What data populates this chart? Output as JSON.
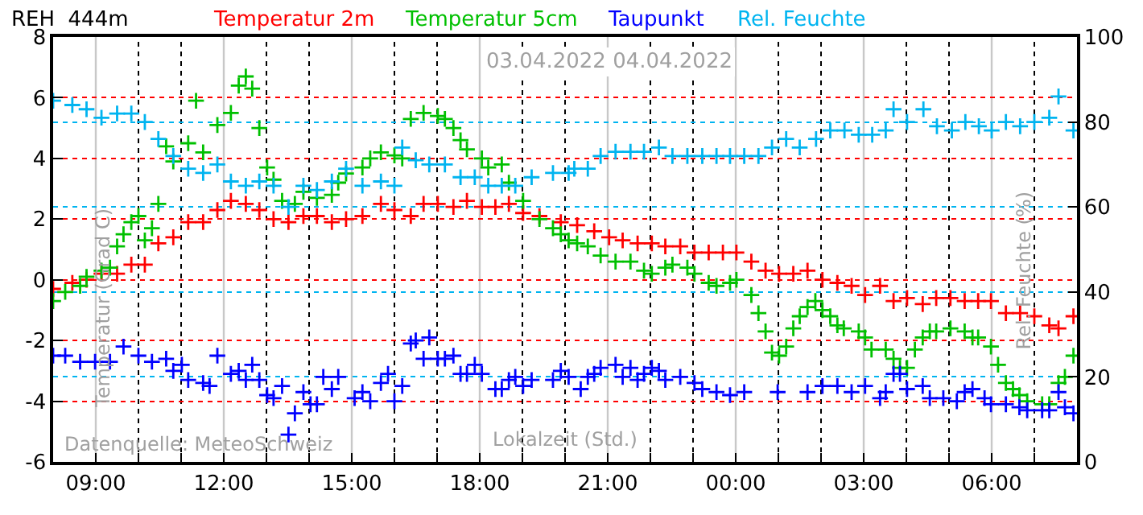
{
  "chart_data": {
    "type": "scatter",
    "title": "REH  444m",
    "xlabel": "Lokalzeit (Std.)",
    "ylabel": "Temperatur (Grad C)",
    "y2label": "Rel. Feuchte (%)",
    "annotations": [
      "03.04.2022 04.04.2022",
      "Datenquelle: MeteoSchweiz"
    ],
    "marker": "cross",
    "grid": true,
    "xlim": [
      "2022-04-03T08:00",
      "2022-04-04T08:00"
    ],
    "xticks": [
      {
        "value": "2022-04-03T09:00",
        "label": "09:00"
      },
      {
        "value": "2022-04-03T10:00",
        "label": null
      },
      {
        "value": "2022-04-03T11:00",
        "label": null
      },
      {
        "value": "2022-04-03T12:00",
        "label": "12:00"
      },
      {
        "value": "2022-04-03T13:00",
        "label": null
      },
      {
        "value": "2022-04-03T14:00",
        "label": null
      },
      {
        "value": "2022-04-03T15:00",
        "label": "15:00"
      },
      {
        "value": "2022-04-03T16:00",
        "label": null
      },
      {
        "value": "2022-04-03T17:00",
        "label": null
      },
      {
        "value": "2022-04-03T18:00",
        "label": "18:00"
      },
      {
        "value": "2022-04-03T19:00",
        "label": null
      },
      {
        "value": "2022-04-03T20:00",
        "label": null
      },
      {
        "value": "2022-04-03T21:00",
        "label": "21:00"
      },
      {
        "value": "2022-04-03T22:00",
        "label": null
      },
      {
        "value": "2022-04-03T23:00",
        "label": null
      },
      {
        "value": "2022-04-04T00:00",
        "label": "00:00"
      },
      {
        "value": "2022-04-04T01:00",
        "label": null
      },
      {
        "value": "2022-04-04T02:00",
        "label": null
      },
      {
        "value": "2022-04-04T03:00",
        "label": "03:00"
      },
      {
        "value": "2022-04-04T04:00",
        "label": null
      },
      {
        "value": "2022-04-04T05:00",
        "label": null
      },
      {
        "value": "2022-04-04T06:00",
        "label": "06:00"
      },
      {
        "value": "2022-04-04T07:00",
        "label": null
      }
    ],
    "ylim": [
      -6,
      8
    ],
    "yticks": [
      -6,
      -4,
      -2,
      0,
      2,
      4,
      6,
      8
    ],
    "y2lim": [
      0,
      100
    ],
    "y2ticks": [
      0,
      20,
      40,
      60,
      80,
      100
    ],
    "series": [
      {
        "name": "Temperatur 2m",
        "color": "#ff0000",
        "x": [
          "2022-04-03T08:00",
          "2022-04-03T08:27",
          "2022-04-03T08:47",
          "2022-04-03T09:08",
          "2022-04-03T09:30",
          "2022-04-03T09:50",
          "2022-04-03T10:09",
          "2022-04-03T10:28",
          "2022-04-03T10:49",
          "2022-04-03T11:10",
          "2022-04-03T11:31",
          "2022-04-03T11:51",
          "2022-04-03T12:10",
          "2022-04-03T12:31",
          "2022-04-03T12:50",
          "2022-04-03T13:10",
          "2022-04-03T13:31",
          "2022-04-03T13:52",
          "2022-04-03T14:11",
          "2022-04-03T14:32",
          "2022-04-03T14:52",
          "2022-04-03T15:15",
          "2022-04-03T15:41",
          "2022-04-03T16:00",
          "2022-04-03T16:23",
          "2022-04-03T16:41",
          "2022-04-03T17:01",
          "2022-04-03T17:23",
          "2022-04-03T17:42",
          "2022-04-03T18:03",
          "2022-04-03T18:22",
          "2022-04-03T18:41",
          "2022-04-03T19:01",
          "2022-04-03T19:24",
          "2022-04-03T19:54",
          "2022-04-03T20:17",
          "2022-04-03T20:41",
          "2022-04-03T21:02",
          "2022-04-03T21:21",
          "2022-04-03T21:42",
          "2022-04-03T22:02",
          "2022-04-03T22:21",
          "2022-04-03T22:42",
          "2022-04-03T23:02",
          "2022-04-03T23:22",
          "2022-04-03T23:42",
          "2022-04-04T00:01",
          "2022-04-04T00:22",
          "2022-04-04T00:42",
          "2022-04-04T01:01",
          "2022-04-04T01:21",
          "2022-04-04T01:41",
          "2022-04-04T02:02",
          "2022-04-04T02:23",
          "2022-04-04T02:43",
          "2022-04-04T03:02",
          "2022-04-04T03:23",
          "2022-04-04T03:42",
          "2022-04-04T04:01",
          "2022-04-04T04:23",
          "2022-04-04T04:42",
          "2022-04-04T05:02",
          "2022-04-04T05:22",
          "2022-04-04T05:41",
          "2022-04-04T05:59",
          "2022-04-04T06:20",
          "2022-04-04T06:40",
          "2022-04-04T07:00",
          "2022-04-04T07:21",
          "2022-04-04T07:34",
          "2022-04-04T07:55"
        ],
        "values": [
          -0.3,
          -0.1,
          0.0,
          0.2,
          0.2,
          0.5,
          0.5,
          1.2,
          1.4,
          1.9,
          1.9,
          2.3,
          2.6,
          2.5,
          2.3,
          2.0,
          1.9,
          2.1,
          2.1,
          1.9,
          2.0,
          2.1,
          2.5,
          2.3,
          2.1,
          2.5,
          2.5,
          2.4,
          2.6,
          2.4,
          2.4,
          2.5,
          2.2,
          2.1,
          1.9,
          1.8,
          1.6,
          1.4,
          1.3,
          1.2,
          1.2,
          1.1,
          1.1,
          0.9,
          0.9,
          0.9,
          0.9,
          0.6,
          0.3,
          0.2,
          0.2,
          0.3,
          0.0,
          -0.1,
          -0.2,
          -0.5,
          -0.2,
          -0.7,
          -0.6,
          -0.8,
          -0.6,
          -0.6,
          -0.7,
          -0.7,
          -0.7,
          -1.1,
          -1.1,
          -1.2,
          -1.5,
          -1.6,
          -1.2
        ]
      },
      {
        "name": "Temperatur 5cm",
        "color": "#00c000",
        "x": [
          "2022-04-03T08:00",
          "2022-04-03T08:17",
          "2022-04-03T08:38",
          "2022-04-03T08:47",
          "2022-04-03T09:08",
          "2022-04-03T09:20",
          "2022-04-03T09:30",
          "2022-04-03T09:39",
          "2022-04-03T09:50",
          "2022-04-03T10:00",
          "2022-04-03T10:09",
          "2022-04-03T10:19",
          "2022-04-03T10:28",
          "2022-04-03T10:39",
          "2022-04-03T10:49",
          "2022-04-03T11:10",
          "2022-04-03T11:21",
          "2022-04-03T11:31",
          "2022-04-03T11:51",
          "2022-04-03T12:10",
          "2022-04-03T12:21",
          "2022-04-03T12:31",
          "2022-04-03T12:40",
          "2022-04-03T12:50",
          "2022-04-03T13:01",
          "2022-04-03T13:10",
          "2022-04-03T13:22",
          "2022-04-03T13:40",
          "2022-04-03T13:52",
          "2022-04-03T14:11",
          "2022-04-03T14:32",
          "2022-04-03T14:41",
          "2022-04-03T14:52",
          "2022-04-03T15:15",
          "2022-04-03T15:26",
          "2022-04-03T15:41",
          "2022-04-03T16:00",
          "2022-04-03T16:11",
          "2022-04-03T16:23",
          "2022-04-03T16:41",
          "2022-04-03T17:01",
          "2022-04-03T17:11",
          "2022-04-03T17:23",
          "2022-04-03T17:33",
          "2022-04-03T17:42",
          "2022-04-03T18:03",
          "2022-04-03T18:12",
          "2022-04-03T18:31",
          "2022-04-03T18:41",
          "2022-04-03T19:01",
          "2022-04-03T19:24",
          "2022-04-03T19:43",
          "2022-04-03T19:54",
          "2022-04-03T20:05",
          "2022-04-03T20:17",
          "2022-04-03T20:32",
          "2022-04-03T20:50",
          "2022-04-03T21:11",
          "2022-04-03T21:32",
          "2022-04-03T21:51",
          "2022-04-03T22:02",
          "2022-04-03T22:21",
          "2022-04-03T22:31",
          "2022-04-03T22:52",
          "2022-04-03T23:02",
          "2022-04-03T23:22",
          "2022-04-03T23:33",
          "2022-04-03T23:52",
          "2022-04-04T00:01",
          "2022-04-04T00:22",
          "2022-04-04T00:32",
          "2022-04-04T00:42",
          "2022-04-04T00:51",
          "2022-04-04T01:01",
          "2022-04-04T01:11",
          "2022-04-04T01:21",
          "2022-04-04T01:30",
          "2022-04-04T01:41",
          "2022-04-04T01:52",
          "2022-04-04T02:02",
          "2022-04-04T02:13",
          "2022-04-04T02:23",
          "2022-04-04T02:32",
          "2022-04-04T02:53",
          "2022-04-04T03:02",
          "2022-04-04T03:11",
          "2022-04-04T03:31",
          "2022-04-04T03:42",
          "2022-04-04T03:51",
          "2022-04-04T04:01",
          "2022-04-04T04:12",
          "2022-04-04T04:23",
          "2022-04-04T04:33",
          "2022-04-04T04:42",
          "2022-04-04T05:02",
          "2022-04-04T05:22",
          "2022-04-04T05:33",
          "2022-04-04T05:41",
          "2022-04-04T05:59",
          "2022-04-04T06:09",
          "2022-04-04T06:20",
          "2022-04-04T06:30",
          "2022-04-04T06:39",
          "2022-04-04T06:50",
          "2022-04-04T07:11",
          "2022-04-04T07:21",
          "2022-04-04T07:34",
          "2022-04-04T07:43",
          "2022-04-04T07:55"
        ],
        "values": [
          -0.7,
          -0.4,
          -0.2,
          0.1,
          0.3,
          0.4,
          1.1,
          1.5,
          1.9,
          2.1,
          1.3,
          1.7,
          2.5,
          4.4,
          3.9,
          4.5,
          5.9,
          4.2,
          5.1,
          5.5,
          6.4,
          6.7,
          6.3,
          5.0,
          3.7,
          3.3,
          2.6,
          2.5,
          2.9,
          2.7,
          2.8,
          3.2,
          3.5,
          3.7,
          4.0,
          4.2,
          4.1,
          4.0,
          5.3,
          5.5,
          5.4,
          5.3,
          5.0,
          4.6,
          4.3,
          4.0,
          3.7,
          3.8,
          3.2,
          2.6,
          2.0,
          1.7,
          1.5,
          1.3,
          1.2,
          1.1,
          0.8,
          0.6,
          0.6,
          0.3,
          0.2,
          0.4,
          0.5,
          0.4,
          0.2,
          -0.1,
          -0.2,
          -0.1,
          0.0,
          -0.5,
          -1.1,
          -1.7,
          -2.4,
          -2.5,
          -2.2,
          -1.6,
          -1.2,
          -0.9,
          -0.7,
          -1.0,
          -1.2,
          -1.5,
          -1.6,
          -1.7,
          -1.9,
          -2.3,
          -2.3,
          -2.6,
          -2.9,
          -2.9,
          -2.3,
          -1.9,
          -1.7,
          -1.7,
          -1.6,
          -1.7,
          -1.9,
          -1.9,
          -2.2,
          -2.8,
          -3.4,
          -3.6,
          -3.8,
          -4.0,
          -4.1,
          -4.1,
          -3.4,
          -3.2,
          -2.5
        ]
      },
      {
        "name": "Taupunkt",
        "color": "#0000ff",
        "x": [
          "2022-04-03T08:00",
          "2022-04-03T08:17",
          "2022-04-03T08:38",
          "2022-04-03T08:59",
          "2022-04-03T09:20",
          "2022-04-03T09:39",
          "2022-04-03T10:00",
          "2022-04-03T10:19",
          "2022-04-03T10:39",
          "2022-04-03T10:49",
          "2022-04-03T11:01",
          "2022-04-03T11:10",
          "2022-04-03T11:31",
          "2022-04-03T11:40",
          "2022-04-03T11:51",
          "2022-04-03T12:10",
          "2022-04-03T12:21",
          "2022-04-03T12:31",
          "2022-04-03T12:40",
          "2022-04-03T12:50",
          "2022-04-03T13:01",
          "2022-04-03T13:10",
          "2022-04-03T13:22",
          "2022-04-03T13:31",
          "2022-04-03T13:40",
          "2022-04-03T13:52",
          "2022-04-03T14:02",
          "2022-04-03T14:11",
          "2022-04-03T14:20",
          "2022-04-03T14:32",
          "2022-04-03T14:41",
          "2022-04-03T15:04",
          "2022-04-03T15:15",
          "2022-04-03T15:26",
          "2022-04-03T15:41",
          "2022-04-03T15:51",
          "2022-04-03T16:00",
          "2022-04-03T16:11",
          "2022-04-03T16:23",
          "2022-04-03T16:30",
          "2022-04-03T16:41",
          "2022-04-03T16:49",
          "2022-04-03T17:01",
          "2022-04-03T17:11",
          "2022-04-03T17:23",
          "2022-04-03T17:33",
          "2022-04-03T17:42",
          "2022-04-03T17:53",
          "2022-04-03T18:03",
          "2022-04-03T18:22",
          "2022-04-03T18:31",
          "2022-04-03T18:41",
          "2022-04-03T18:50",
          "2022-04-03T19:01",
          "2022-04-03T19:13",
          "2022-04-03T19:43",
          "2022-04-03T19:54",
          "2022-04-03T20:05",
          "2022-04-03T20:22",
          "2022-04-03T20:32",
          "2022-04-03T20:41",
          "2022-04-03T20:50",
          "2022-04-03T21:11",
          "2022-04-03T21:21",
          "2022-04-03T21:32",
          "2022-04-03T21:42",
          "2022-04-03T21:51",
          "2022-04-03T22:02",
          "2022-04-03T22:12",
          "2022-04-03T22:21",
          "2022-04-03T22:42",
          "2022-04-03T23:02",
          "2022-04-03T23:13",
          "2022-04-03T23:33",
          "2022-04-03T23:52",
          "2022-04-04T00:12",
          "2022-04-04T00:59",
          "2022-04-04T01:41",
          "2022-04-04T02:02",
          "2022-04-04T02:23",
          "2022-04-04T02:43",
          "2022-04-04T03:02",
          "2022-04-04T03:23",
          "2022-04-04T03:31",
          "2022-04-04T03:42",
          "2022-04-04T03:51",
          "2022-04-04T04:01",
          "2022-04-04T04:23",
          "2022-04-04T04:33",
          "2022-04-04T04:52",
          "2022-04-04T05:11",
          "2022-04-04T05:22",
          "2022-04-04T05:33",
          "2022-04-04T05:50",
          "2022-04-04T05:59",
          "2022-04-04T06:20",
          "2022-04-04T06:39",
          "2022-04-04T06:50",
          "2022-04-04T07:11",
          "2022-04-04T07:21",
          "2022-04-04T07:34",
          "2022-04-04T07:43",
          "2022-04-04T07:55"
        ],
        "values": [
          -2.5,
          -2.5,
          -2.7,
          -2.7,
          -2.7,
          -2.2,
          -2.5,
          -2.7,
          -2.6,
          -3.0,
          -2.8,
          -3.3,
          -3.4,
          -3.5,
          -2.5,
          -3.1,
          -3.0,
          -3.3,
          -2.8,
          -3.3,
          -3.8,
          -3.9,
          -3.5,
          -5.1,
          -4.4,
          -3.7,
          -4.1,
          -4.1,
          -3.2,
          -3.6,
          -3.2,
          -3.9,
          -3.7,
          -4.0,
          -3.4,
          -3.1,
          -4.0,
          -3.5,
          -2.1,
          -2.0,
          -2.6,
          -1.9,
          -2.6,
          -2.6,
          -2.5,
          -3.1,
          -3.1,
          -2.8,
          -3.1,
          -3.6,
          -3.6,
          -3.3,
          -3.2,
          -3.5,
          -3.3,
          -3.3,
          -3.0,
          -3.2,
          -3.6,
          -3.2,
          -3.1,
          -2.9,
          -2.8,
          -3.2,
          -2.9,
          -3.3,
          -3.1,
          -2.9,
          -3.0,
          -3.3,
          -3.2,
          -3.4,
          -3.6,
          -3.7,
          -3.8,
          -3.7,
          -3.7,
          -3.7,
          -3.5,
          -3.5,
          -3.7,
          -3.5,
          -3.9,
          -3.7,
          -3.1,
          -3.1,
          -3.6,
          -3.5,
          -3.9,
          -3.9,
          -4.0,
          -3.7,
          -3.6,
          -3.9,
          -4.1,
          -4.1,
          -4.2,
          -4.3,
          -4.3,
          -4.3,
          -3.7,
          -4.2,
          -4.4
        ]
      },
      {
        "name": "Rel. Feuchte",
        "color": "#00b4f0",
        "axis": "y2",
        "x": [
          "2022-04-03T08:00",
          "2022-04-03T08:27",
          "2022-04-03T08:47",
          "2022-04-03T09:08",
          "2022-04-03T09:30",
          "2022-04-03T09:50",
          "2022-04-03T10:09",
          "2022-04-03T10:28",
          "2022-04-03T10:49",
          "2022-04-03T11:10",
          "2022-04-03T11:31",
          "2022-04-03T11:51",
          "2022-04-03T12:10",
          "2022-04-03T12:31",
          "2022-04-03T12:50",
          "2022-04-03T13:10",
          "2022-04-03T13:31",
          "2022-04-03T13:52",
          "2022-04-03T14:11",
          "2022-04-03T14:32",
          "2022-04-03T14:52",
          "2022-04-03T15:15",
          "2022-04-03T15:41",
          "2022-04-03T16:00",
          "2022-04-03T16:11",
          "2022-04-03T16:30",
          "2022-04-03T16:49",
          "2022-04-03T17:11",
          "2022-04-03T17:33",
          "2022-04-03T17:53",
          "2022-04-03T18:12",
          "2022-04-03T18:31",
          "2022-04-03T18:50",
          "2022-04-03T19:13",
          "2022-04-03T19:43",
          "2022-04-03T20:05",
          "2022-04-03T20:13",
          "2022-04-03T20:32",
          "2022-04-03T20:50",
          "2022-04-03T21:11",
          "2022-04-03T21:32",
          "2022-04-03T21:51",
          "2022-04-03T22:12",
          "2022-04-03T22:31",
          "2022-04-03T22:52",
          "2022-04-03T23:13",
          "2022-04-03T23:33",
          "2022-04-03T23:52",
          "2022-04-04T00:12",
          "2022-04-04T00:32",
          "2022-04-04T00:51",
          "2022-04-04T01:11",
          "2022-04-04T01:30",
          "2022-04-04T01:53",
          "2022-04-04T02:13",
          "2022-04-04T02:33",
          "2022-04-04T02:53",
          "2022-04-04T03:12",
          "2022-04-04T03:31",
          "2022-04-04T03:42",
          "2022-04-04T04:01",
          "2022-04-04T04:24",
          "2022-04-04T04:43",
          "2022-04-04T05:04",
          "2022-04-04T05:23",
          "2022-04-04T05:42",
          "2022-04-04T06:00",
          "2022-04-04T06:20",
          "2022-04-04T06:40",
          "2022-04-04T07:00",
          "2022-04-04T07:21",
          "2022-04-04T07:34",
          "2022-04-04T07:55"
        ],
        "values": [
          85,
          84,
          83,
          81,
          82,
          82,
          80,
          76,
          72,
          69,
          68,
          70,
          66,
          65,
          66,
          65,
          60,
          65,
          64,
          66,
          69,
          65,
          66,
          65,
          74,
          71,
          70,
          70,
          67,
          67,
          65,
          65,
          65,
          67,
          68,
          68,
          69,
          69,
          72,
          73,
          73,
          73,
          74,
          72,
          72,
          72,
          72,
          72,
          72,
          72,
          74,
          76,
          74,
          76,
          78,
          78,
          77,
          77,
          78,
          83,
          80,
          83,
          79,
          78,
          80,
          79,
          78,
          80,
          79,
          80,
          81,
          86,
          78
        ]
      }
    ]
  }
}
